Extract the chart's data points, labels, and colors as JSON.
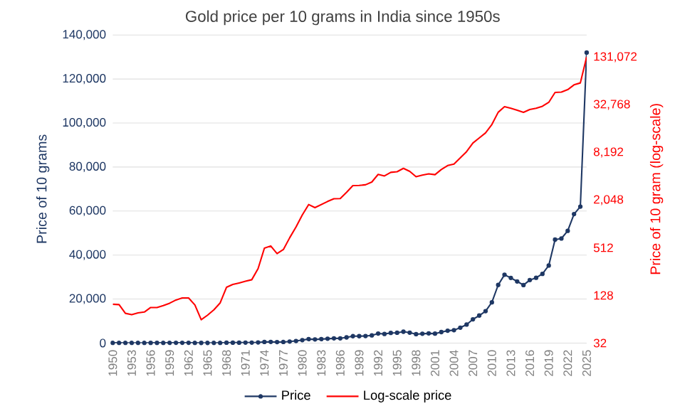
{
  "chart_data": {
    "type": "line",
    "title": "Gold price per 10 grams in India since 1950s",
    "ylabel": "Price of 10 grams",
    "y2label": "Price of 10 gram (log-scale)",
    "x": [
      1950,
      1951,
      1952,
      1953,
      1954,
      1955,
      1956,
      1957,
      1958,
      1959,
      1960,
      1961,
      1962,
      1963,
      1964,
      1965,
      1966,
      1967,
      1968,
      1969,
      1970,
      1971,
      1972,
      1973,
      1974,
      1975,
      1976,
      1977,
      1978,
      1979,
      1980,
      1981,
      1982,
      1983,
      1984,
      1985,
      1986,
      1987,
      1988,
      1989,
      1990,
      1991,
      1992,
      1993,
      1994,
      1995,
      1996,
      1997,
      1998,
      1999,
      2000,
      2001,
      2002,
      2003,
      2004,
      2005,
      2006,
      2007,
      2008,
      2009,
      2010,
      2011,
      2012,
      2013,
      2014,
      2015,
      2016,
      2017,
      2018,
      2019,
      2020,
      2021,
      2022,
      2023,
      2024,
      2025
    ],
    "series": [
      {
        "name": "Price",
        "color": "#1f3864",
        "marker": "circle",
        "values": [
          99,
          98,
          76,
          73,
          77,
          79,
          90,
          90,
          95,
          102,
          112,
          119,
          119,
          97,
          63,
          72,
          84,
          103,
          162,
          176,
          184,
          193,
          202,
          279,
          506,
          540,
          432,
          486,
          685,
          937,
          1330,
          1800,
          1645,
          1800,
          1970,
          2130,
          2140,
          2570,
          3130,
          3140,
          3200,
          3466,
          4334,
          4140,
          4598,
          4680,
          5160,
          4725,
          4045,
          4234,
          4400,
          4300,
          4990,
          5600,
          5850,
          7000,
          8400,
          10800,
          12500,
          14500,
          18500,
          26400,
          31050,
          29600,
          28006,
          26343,
          28623,
          29667,
          31438,
          35220,
          47000,
          47500,
          51000,
          58600,
          62000,
          132000
        ]
      },
      {
        "name": "Log-scale price",
        "color": "#ff0000",
        "marker": "none",
        "axis": "y2",
        "values": [
          99,
          98,
          76,
          73,
          77,
          79,
          90,
          90,
          95,
          102,
          112,
          119,
          119,
          97,
          63,
          72,
          84,
          103,
          162,
          176,
          184,
          193,
          202,
          279,
          506,
          540,
          432,
          486,
          685,
          937,
          1330,
          1800,
          1645,
          1800,
          1970,
          2130,
          2140,
          2570,
          3130,
          3140,
          3200,
          3466,
          4334,
          4140,
          4598,
          4680,
          5160,
          4725,
          4045,
          4234,
          4400,
          4300,
          4990,
          5600,
          5850,
          7000,
          8400,
          10800,
          12500,
          14500,
          18500,
          26400,
          31050,
          29600,
          28006,
          26343,
          28623,
          29667,
          31438,
          35220,
          47000,
          47500,
          51000,
          58600,
          62000,
          132000
        ]
      }
    ],
    "xlim": [
      1950,
      2025
    ],
    "xticks": [
      1950,
      1953,
      1956,
      1959,
      1962,
      1965,
      1968,
      1971,
      1974,
      1977,
      1980,
      1983,
      1986,
      1989,
      1992,
      1995,
      1998,
      2001,
      2004,
      2007,
      2010,
      2013,
      2016,
      2019,
      2022,
      2025
    ],
    "ylim": [
      0,
      140000
    ],
    "yticks": [
      0,
      {
        "value": 20000,
        "label": "20,000"
      },
      {
        "value": 40000,
        "label": "40,000"
      },
      {
        "value": 60000,
        "label": "60,000"
      },
      {
        "value": 80000,
        "label": "80,000"
      },
      {
        "value": 100000,
        "label": "100,000"
      },
      {
        "value": 120000,
        "label": "120,000"
      },
      {
        "value": 140000,
        "label": "140,000"
      }
    ],
    "y2lim": [
      32,
      250000
    ],
    "y2ticks": [
      32,
      128,
      512,
      {
        "value": 2048,
        "label": "2,048"
      },
      {
        "value": 8192,
        "label": "8,192"
      },
      {
        "value": 32768,
        "label": "32,768"
      },
      {
        "value": 131072,
        "label": "131,072"
      }
    ],
    "log": "y2",
    "grid": "y",
    "legend": "bottom"
  }
}
